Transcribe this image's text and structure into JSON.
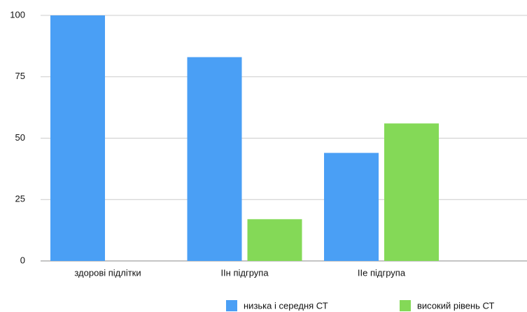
{
  "chart_data": {
    "type": "bar",
    "categories": [
      "здорові підлітки",
      "IIн підгрупа",
      "IIе підгрупа"
    ],
    "series": [
      {
        "name": "низька і середня СТ",
        "color": "#4a9ff5",
        "values": [
          100,
          83,
          44
        ]
      },
      {
        "name": "високий рівень СТ",
        "color": "#84d957",
        "values": [
          0,
          17,
          56
        ]
      }
    ],
    "ylim": [
      0,
      100
    ],
    "yticks": [
      0,
      25,
      50,
      75,
      100
    ],
    "grid": true,
    "legend": "bottom"
  }
}
